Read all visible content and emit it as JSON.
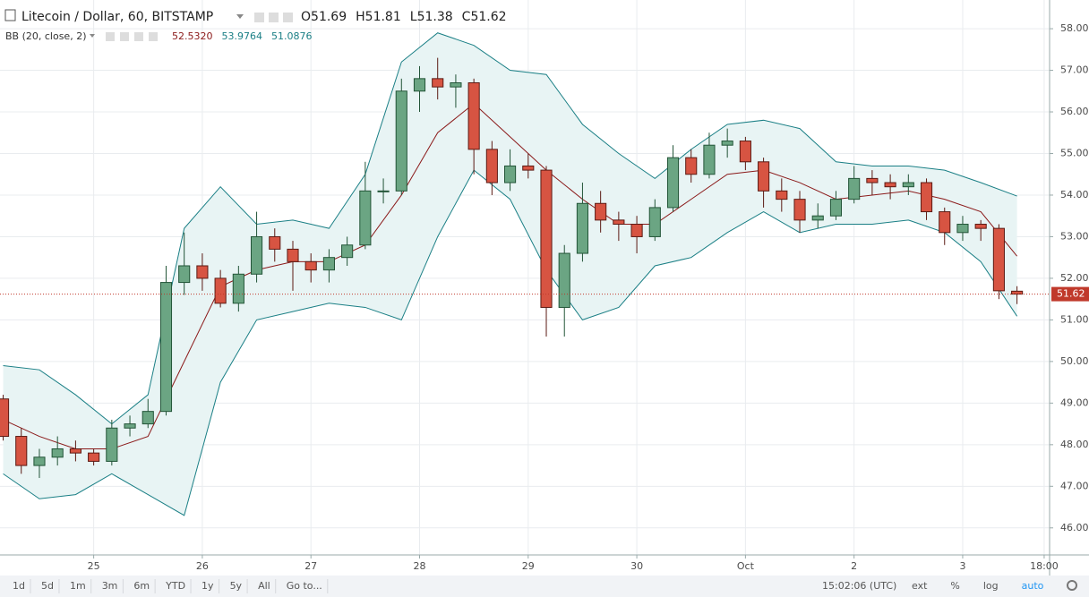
{
  "chart_data": {
    "type": "candlestick",
    "title": "Litecoin / Dollar, 60, BITSTAMP",
    "ohlc_labels": [
      "O",
      "H",
      "L",
      "C"
    ],
    "colors": {
      "up": "#6ba583",
      "up_border": "#225437",
      "down": "#d75442",
      "down_border": "#5b1a13",
      "last_price": "#c0392b"
    },
    "xlim": [
      -20.7,
      211.2
    ],
    "xticks": [
      {
        "value": 0,
        "label": "25"
      },
      {
        "value": 24,
        "label": "26"
      },
      {
        "value": 48,
        "label": "27"
      },
      {
        "value": 72,
        "label": "28"
      },
      {
        "value": 96,
        "label": "29"
      },
      {
        "value": 120,
        "label": "30"
      },
      {
        "value": 144,
        "label": "Oct"
      },
      {
        "value": 168,
        "label": "2"
      },
      {
        "value": 192,
        "label": "3"
      },
      {
        "value": 210,
        "label": "18:00"
      }
    ],
    "ylim": [
      45.35,
      58.69
    ],
    "yticks": [
      {
        "value": 46,
        "label": "46.00"
      },
      {
        "value": 47,
        "label": "47.00"
      },
      {
        "value": 48,
        "label": "48.00"
      },
      {
        "value": 49,
        "label": "49.00"
      },
      {
        "value": 50,
        "label": "50.00"
      },
      {
        "value": 51,
        "label": "51.00"
      },
      {
        "value": 52,
        "label": "52.00"
      },
      {
        "value": 53,
        "label": "53.00"
      },
      {
        "value": 54,
        "label": "54.00"
      },
      {
        "value": 55,
        "label": "55.00"
      },
      {
        "value": 56,
        "label": "56.00"
      },
      {
        "value": 57,
        "label": "57.00"
      },
      {
        "value": 58,
        "label": "58.00"
      }
    ],
    "grid": true,
    "candles": {
      "x": [
        -20,
        -16,
        -12,
        -8,
        -4,
        0,
        4,
        8,
        12,
        16,
        20,
        24,
        28,
        32,
        36,
        40,
        44,
        48,
        52,
        56,
        60,
        64,
        68,
        72,
        76,
        80,
        84,
        88,
        92,
        96,
        100,
        104,
        108,
        112,
        116,
        120,
        124,
        128,
        132,
        136,
        140,
        144,
        148,
        152,
        156,
        160,
        164,
        168,
        172,
        176,
        180,
        184,
        188,
        192,
        196,
        200,
        204
      ],
      "open": [
        49.1,
        48.2,
        47.5,
        47.7,
        47.9,
        47.8,
        47.6,
        48.4,
        48.5,
        48.8,
        51.9,
        52.3,
        52.0,
        51.4,
        52.1,
        53.0,
        52.7,
        52.4,
        52.2,
        52.5,
        52.8,
        54.1,
        54.1,
        56.5,
        56.8,
        56.6,
        56.7,
        55.1,
        54.3,
        54.7,
        54.6,
        51.3,
        52.6,
        53.8,
        53.4,
        53.3,
        53.0,
        53.7,
        54.9,
        54.5,
        55.2,
        55.3,
        54.8,
        54.1,
        53.9,
        53.4,
        53.5,
        53.9,
        54.4,
        54.3,
        54.2,
        54.3,
        53.6,
        53.1,
        53.3,
        53.2,
        51.69
      ],
      "high": [
        49.2,
        48.4,
        47.9,
        48.2,
        48.1,
        47.9,
        48.6,
        48.7,
        49.1,
        52.3,
        53.1,
        52.6,
        52.2,
        52.3,
        53.6,
        53.2,
        52.9,
        52.6,
        52.7,
        53.0,
        54.8,
        54.4,
        56.8,
        57.1,
        57.3,
        56.9,
        56.8,
        55.3,
        55.1,
        55.0,
        54.7,
        52.8,
        54.3,
        54.1,
        53.6,
        53.5,
        53.9,
        55.2,
        55.1,
        55.5,
        55.6,
        55.4,
        54.9,
        54.4,
        54.1,
        53.8,
        54.1,
        54.7,
        54.6,
        54.5,
        54.5,
        54.4,
        53.7,
        53.5,
        53.4,
        53.3,
        51.81
      ],
      "low": [
        48.1,
        47.3,
        47.2,
        47.5,
        47.6,
        47.5,
        47.5,
        48.2,
        48.4,
        48.7,
        51.6,
        51.7,
        51.3,
        51.2,
        51.9,
        52.4,
        51.7,
        51.9,
        51.9,
        52.3,
        52.7,
        53.8,
        54.0,
        56.0,
        56.3,
        56.1,
        54.5,
        54.0,
        54.1,
        54.4,
        50.6,
        50.6,
        52.4,
        53.1,
        52.9,
        52.6,
        52.9,
        53.6,
        54.3,
        54.4,
        54.9,
        54.6,
        53.7,
        53.6,
        53.1,
        53.2,
        53.4,
        53.8,
        54.0,
        53.9,
        54.0,
        53.4,
        52.8,
        52.9,
        52.9,
        51.5,
        51.38
      ],
      "close": [
        48.2,
        47.5,
        47.7,
        47.9,
        47.8,
        47.6,
        48.4,
        48.5,
        48.8,
        51.9,
        52.3,
        52.0,
        51.4,
        52.1,
        53.0,
        52.7,
        52.4,
        52.2,
        52.5,
        52.8,
        54.1,
        54.1,
        56.5,
        56.8,
        56.6,
        56.7,
        55.1,
        54.3,
        54.7,
        54.6,
        51.3,
        52.6,
        53.8,
        53.4,
        53.3,
        53.0,
        53.7,
        54.9,
        54.5,
        55.2,
        55.3,
        54.8,
        54.1,
        53.9,
        53.4,
        53.5,
        53.9,
        54.4,
        54.3,
        54.2,
        54.3,
        53.6,
        53.1,
        53.3,
        53.2,
        51.7,
        51.62
      ]
    },
    "bands": {
      "label": "BB (20, close, 2)",
      "fill": "#e8f4f4",
      "x": [
        -20,
        -12,
        -4,
        4,
        12,
        20,
        28,
        36,
        44,
        52,
        60,
        68,
        76,
        84,
        92,
        100,
        108,
        116,
        124,
        132,
        140,
        148,
        156,
        164,
        172,
        180,
        188,
        196,
        204
      ],
      "middle": {
        "color": "#8b1a1a",
        "last_label": "52.5320",
        "values": [
          48.6,
          48.2,
          47.9,
          47.9,
          48.2,
          50.0,
          51.8,
          52.2,
          52.4,
          52.4,
          52.8,
          54.0,
          55.5,
          56.2,
          55.4,
          54.6,
          53.9,
          53.3,
          53.3,
          53.9,
          54.5,
          54.6,
          54.3,
          53.9,
          54.0,
          54.1,
          53.9,
          53.6,
          52.532
        ]
      },
      "upper": {
        "color": "#1a7f85",
        "last_label": "53.9764",
        "values": [
          49.9,
          49.8,
          49.2,
          48.5,
          49.2,
          53.2,
          54.2,
          53.3,
          53.4,
          53.2,
          54.5,
          57.2,
          57.9,
          57.6,
          57.0,
          56.9,
          55.7,
          55.0,
          54.4,
          55.1,
          55.7,
          55.8,
          55.6,
          54.8,
          54.7,
          54.7,
          54.6,
          54.3,
          53.9764
        ]
      },
      "lower": {
        "color": "#1a7f85",
        "last_label": "51.0876",
        "values": [
          47.3,
          46.7,
          46.8,
          47.3,
          46.8,
          46.3,
          49.5,
          51.0,
          51.2,
          51.4,
          51.3,
          51.0,
          53.0,
          54.6,
          53.9,
          52.2,
          51.0,
          51.3,
          52.3,
          52.5,
          53.1,
          53.6,
          53.1,
          53.3,
          53.3,
          53.4,
          53.1,
          52.4,
          51.0876
        ]
      }
    },
    "toolbar": {
      "left": [
        "1d",
        "5d",
        "1m",
        "3m",
        "6m",
        "YTD",
        "1y",
        "5y",
        "All",
        "Go to..."
      ],
      "time": "15:02:06 (UTC)",
      "right": [
        "ext",
        "%",
        "log",
        "auto"
      ],
      "active": "auto"
    }
  }
}
